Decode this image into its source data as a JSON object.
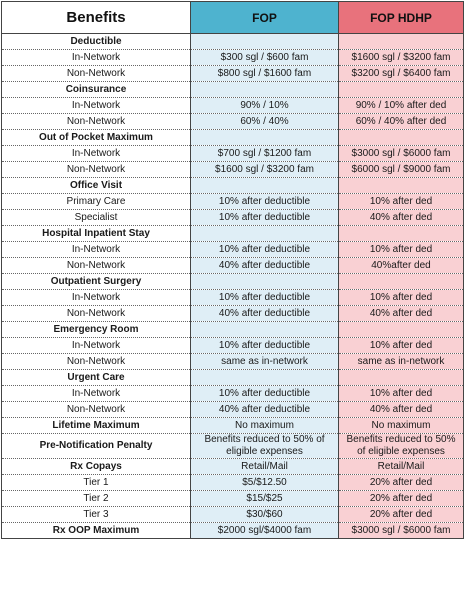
{
  "header": {
    "benefits": "Benefits",
    "fop": "FOP",
    "fop_hdhp": "FOP HDHP"
  },
  "rows": [
    {
      "label": "Deductible",
      "fop": "",
      "hdhp": "",
      "section": true
    },
    {
      "label": "In-Network",
      "fop": "$300 sgl / $600 fam",
      "hdhp": "$1600 sgl / $3200 fam"
    },
    {
      "label": "Non-Network",
      "fop": "$800 sgl / $1600 fam",
      "hdhp": "$3200 sgl / $6400 fam"
    },
    {
      "label": "Coinsurance",
      "fop": "",
      "hdhp": "",
      "section": true
    },
    {
      "label": "In-Network",
      "fop": "90% / 10%",
      "hdhp": "90% / 10% after ded"
    },
    {
      "label": "Non-Network",
      "fop": "60% / 40%",
      "hdhp": "60% / 40% after ded"
    },
    {
      "label": "Out of Pocket Maximum",
      "fop": "",
      "hdhp": "",
      "section": true
    },
    {
      "label": "In-Network",
      "fop": "$700 sgl / $1200 fam",
      "hdhp": "$3000 sgl / $6000 fam"
    },
    {
      "label": "Non-Network",
      "fop": "$1600 sgl / $3200 fam",
      "hdhp": "$6000 sgl / $9000 fam"
    },
    {
      "label": "Office Visit",
      "fop": "",
      "hdhp": "",
      "section": true
    },
    {
      "label": "Primary Care",
      "fop": "10% after deductible",
      "hdhp": "10% after ded"
    },
    {
      "label": "Specialist",
      "fop": "10% after deductible",
      "hdhp": "40% after ded"
    },
    {
      "label": "Hospital Inpatient Stay",
      "fop": "",
      "hdhp": "",
      "section": true
    },
    {
      "label": "In-Network",
      "fop": "10% after deductible",
      "hdhp": "10% after ded"
    },
    {
      "label": "Non-Network",
      "fop": "40% after deductible",
      "hdhp": "40%after ded"
    },
    {
      "label": "Outpatient Surgery",
      "fop": "",
      "hdhp": "",
      "section": true
    },
    {
      "label": "In-Network",
      "fop": "10% after deductible",
      "hdhp": "10% after ded"
    },
    {
      "label": "Non-Network",
      "fop": "40% after deductible",
      "hdhp": "40% after ded"
    },
    {
      "label": "Emergency Room",
      "fop": "",
      "hdhp": "",
      "section": true
    },
    {
      "label": "In-Network",
      "fop": "10% after deductible",
      "hdhp": "10% after ded"
    },
    {
      "label": "Non-Network",
      "fop": "same as in-network",
      "hdhp": "same as in-network"
    },
    {
      "label": "Urgent Care",
      "fop": "",
      "hdhp": "",
      "section": true
    },
    {
      "label": "In-Network",
      "fop": "10% after deductible",
      "hdhp": "10% after ded"
    },
    {
      "label": "Non-Network",
      "fop": "40% after deductible",
      "hdhp": "40% after ded"
    },
    {
      "label": "Lifetime Maximum",
      "fop": "No maximum",
      "hdhp": "No maximum",
      "section": true
    },
    {
      "label": "Pre-Notification Penalty",
      "fop": "Benefits reduced to 50% of eligible expenses",
      "hdhp": "Benefits reduced to 50% of eligible expenses",
      "section": true
    },
    {
      "label": "Rx Copays",
      "fop": "Retail/Mail",
      "hdhp": "Retail/Mail",
      "section": true
    },
    {
      "label": "Tier 1",
      "fop": "$5/$12.50",
      "hdhp": "20% after ded"
    },
    {
      "label": "Tier 2",
      "fop": "$15/$25",
      "hdhp": "20% after ded"
    },
    {
      "label": "Tier 3",
      "fop": "$30/$60",
      "hdhp": "20% after ded"
    },
    {
      "label": "Rx OOP Maximum",
      "fop": "$2000 sgl/$4000 fam",
      "hdhp": "$3000 sgl / $6000 fam",
      "section": true
    }
  ]
}
